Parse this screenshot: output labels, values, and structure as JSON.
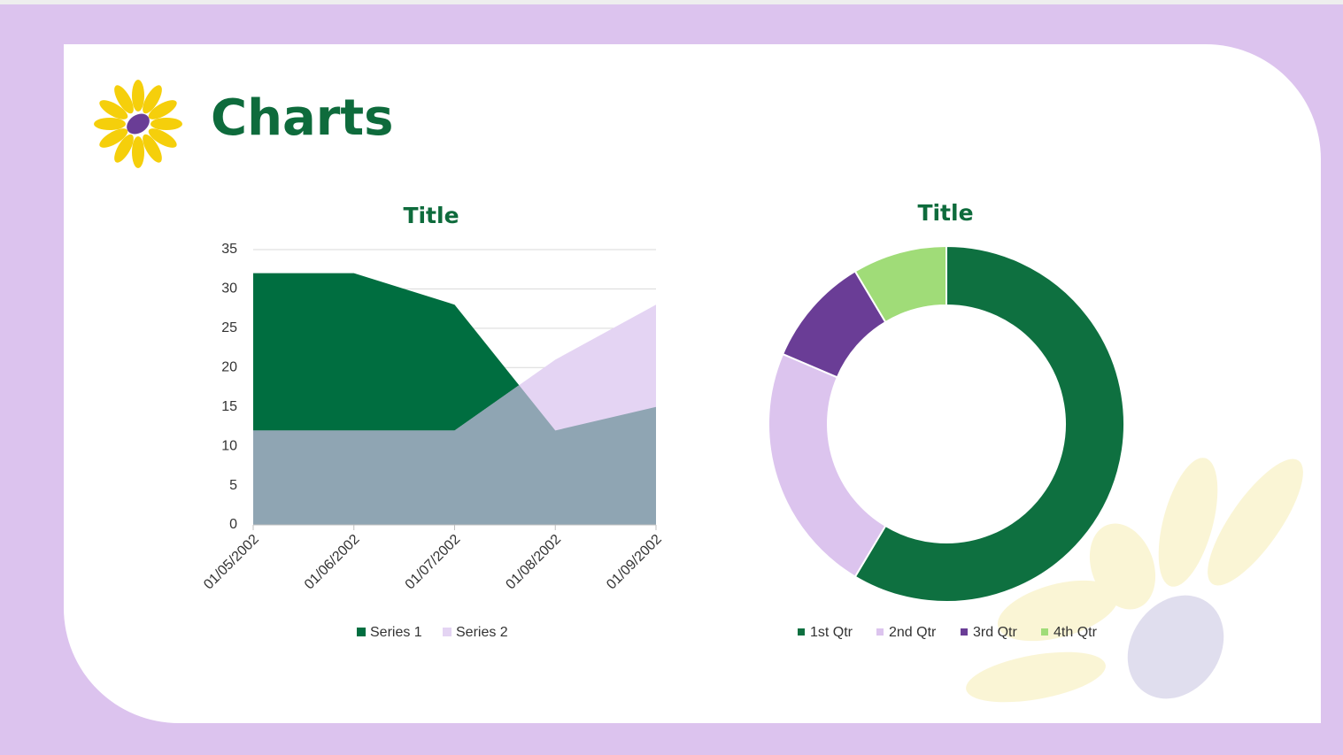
{
  "slide_title": "Charts",
  "chart_data": [
    {
      "type": "area",
      "title": "Title",
      "categories": [
        "01/05/2002",
        "01/06/2002",
        "01/07/2002",
        "01/08/2002",
        "01/09/2002"
      ],
      "series": [
        {
          "name": "Series 1",
          "color": "#006e40",
          "values": [
            32,
            32,
            28,
            12,
            15
          ]
        },
        {
          "name": "Series 2",
          "color": "#e4d4f3",
          "values": [
            12,
            12,
            12,
            21,
            28
          ]
        }
      ],
      "overlap_color": "#8fa5b3",
      "ylim": [
        0,
        35
      ],
      "yticks": [
        0,
        5,
        10,
        15,
        20,
        25,
        30,
        35
      ],
      "grid": true,
      "legend": "bottom"
    },
    {
      "type": "donut",
      "title": "Title",
      "categories": [
        "1st Qtr",
        "2nd Qtr",
        "3rd Qtr",
        "4th Qtr"
      ],
      "values": [
        8.2,
        3.2,
        1.4,
        1.2
      ],
      "colors": [
        "#0e7040",
        "#dcc4ee",
        "#6a3d96",
        "#a0dc78"
      ],
      "legend": "bottom"
    }
  ]
}
